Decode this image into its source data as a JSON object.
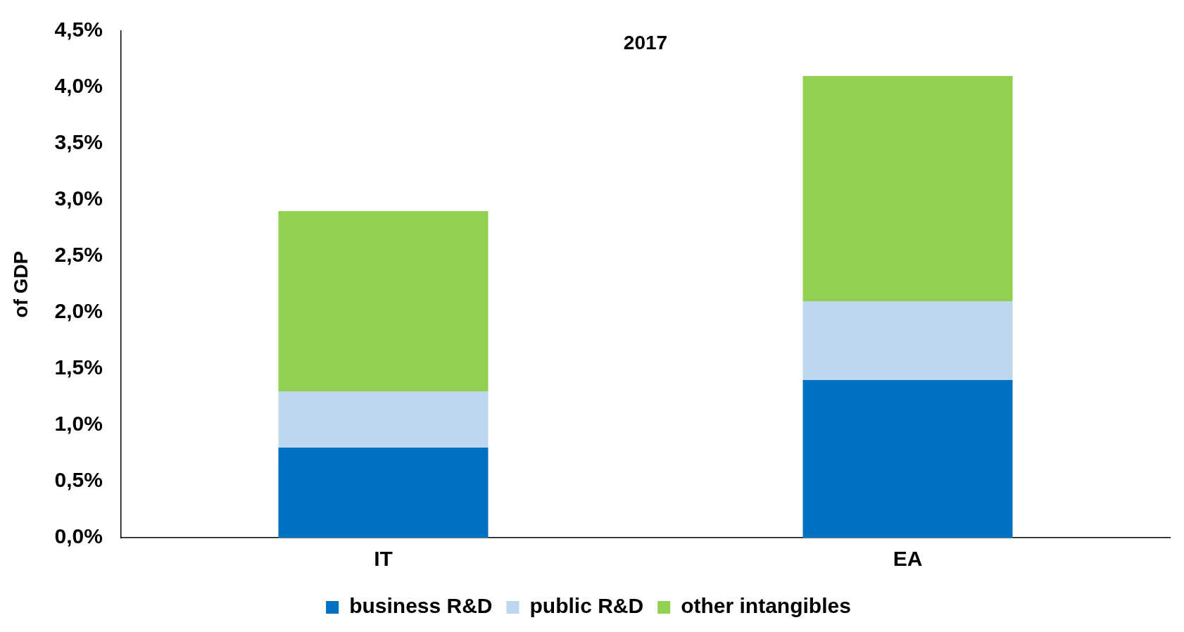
{
  "chart_data": {
    "type": "bar",
    "title": "2017",
    "ylabel": "of GDP",
    "categories": [
      "IT",
      "EA"
    ],
    "stacked": true,
    "series": [
      {
        "name": "business R&D",
        "color": "#0070c0",
        "values": [
          0.8,
          1.4
        ]
      },
      {
        "name": "public R&D",
        "color": "#bdd7ee",
        "values": [
          0.5,
          0.7
        ]
      },
      {
        "name": "other intangibles",
        "color": "#92d050",
        "values": [
          1.6,
          2.0
        ]
      }
    ],
    "ylim": [
      0,
      4.5
    ],
    "yticks": [
      {
        "value": 0,
        "label": "0,0%"
      },
      {
        "value": 0.5,
        "label": "0,5%"
      },
      {
        "value": 1,
        "label": "1,0%"
      },
      {
        "value": 1.5,
        "label": "1,5%"
      },
      {
        "value": 2,
        "label": "2,0%"
      },
      {
        "value": 2.5,
        "label": "2,5%"
      },
      {
        "value": 3,
        "label": "3,0%"
      },
      {
        "value": 3.5,
        "label": "3,5%"
      },
      {
        "value": 4,
        "label": "4,0%"
      },
      {
        "value": 4.5,
        "label": "4,5%"
      }
    ],
    "grid": false,
    "legend": "bottom"
  }
}
